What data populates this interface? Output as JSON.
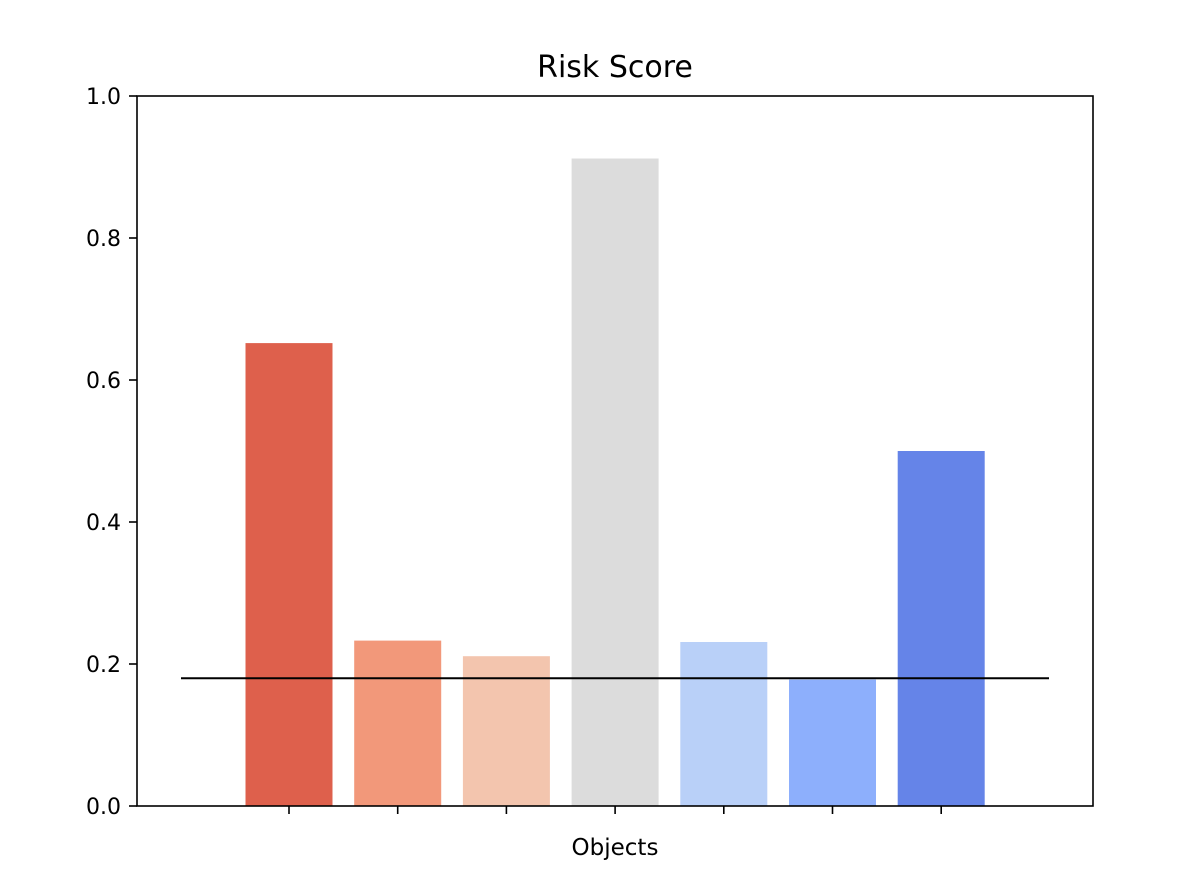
{
  "chart_data": {
    "type": "bar",
    "title": "Risk Score",
    "xlabel": "Objects",
    "ylabel": "",
    "ylim": [
      0,
      1.0
    ],
    "yticks": [
      "0.0",
      "0.2",
      "0.4",
      "0.6",
      "0.8",
      "1.0"
    ],
    "categories": [
      "",
      "",
      "",
      "",
      "",
      "",
      ""
    ],
    "values": [
      0.652,
      0.233,
      0.211,
      0.912,
      0.231,
      0.178,
      0.5
    ],
    "bar_colors": [
      "#de604c",
      "#f2987a",
      "#f3c5ae",
      "#dcdcdc",
      "#b9d0f8",
      "#8daffc",
      "#6584e8"
    ],
    "reference_line": {
      "value": 0.18,
      "color": "#000000"
    },
    "grid": false,
    "legend": "none"
  }
}
